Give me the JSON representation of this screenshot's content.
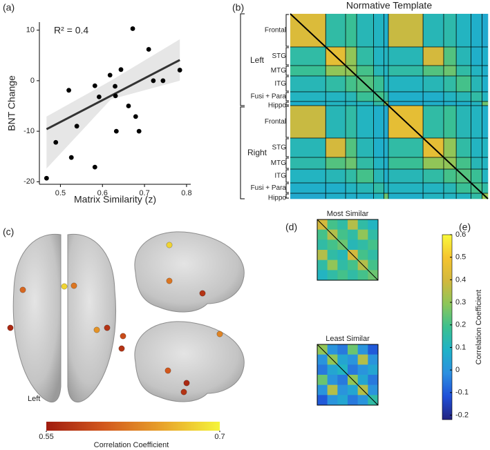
{
  "chart_data": [
    {
      "type": "scatter",
      "label": "(a)",
      "annotation": "R² = 0.4",
      "xlabel": "Matrix Similarity (z)",
      "ylabel": "BNT Change",
      "x": [
        0.467,
        0.489,
        0.52,
        0.526,
        0.539,
        0.582,
        0.592,
        0.582,
        0.618,
        0.63,
        0.631,
        0.633,
        0.644,
        0.662,
        0.672,
        0.679,
        0.687,
        0.71,
        0.721,
        0.744,
        0.784
      ],
      "y": [
        -19.3,
        -12.2,
        -1.9,
        -15.2,
        -9,
        -1,
        -3.2,
        -17.1,
        1.1,
        -1.1,
        -3,
        -10,
        2.2,
        -5,
        10.3,
        -7.1,
        -10,
        6.2,
        0,
        0,
        2.1
      ],
      "color": "#000000",
      "fit": {
        "x": [
          0.467,
          0.784
        ],
        "y": [
          -9.6,
          4.1
        ],
        "color": "#333333"
      },
      "band": {
        "x": [
          0.467,
          0.62,
          0.784
        ],
        "lower": [
          -17.4,
          -3.7,
          0
        ],
        "upper": [
          -7.1,
          0,
          8.2
        ],
        "color": "#e6e6e6"
      },
      "xlim": [
        0.45,
        0.81
      ],
      "ylim": [
        -20.5,
        11.6
      ],
      "xticks": [
        0.5,
        0.6,
        0.7,
        0.8
      ],
      "yticks": [
        -20,
        -10,
        0,
        10
      ]
    },
    {
      "type": "heatmap",
      "label": "(b)",
      "title": "Normative Template",
      "groups": [
        "Left",
        "Right"
      ],
      "categories": [
        "Frontal",
        "STG",
        "MTG",
        "ITG",
        "Fusi + Para",
        "Hippo",
        "Frontal",
        "STG",
        "MTG",
        "ITG",
        "Fusi + Para",
        "Hippo"
      ],
      "values": [
        [
          0.42,
          0.15,
          0.18,
          0.12,
          0.1,
          0.08,
          0.38,
          0.12,
          0.14,
          0.1,
          0.08,
          0.06
        ],
        [
          0.15,
          0.45,
          0.3,
          0.15,
          0.1,
          0.1,
          0.12,
          0.4,
          0.22,
          0.12,
          0.08,
          0.08
        ],
        [
          0.18,
          0.3,
          0.3,
          0.2,
          0.12,
          0.1,
          0.15,
          0.22,
          0.25,
          0.15,
          0.1,
          0.08
        ],
        [
          0.12,
          0.15,
          0.2,
          0.22,
          0.18,
          0.1,
          0.1,
          0.12,
          0.15,
          0.2,
          0.12,
          0.08
        ],
        [
          0.1,
          0.1,
          0.12,
          0.18,
          0.2,
          0.15,
          0.08,
          0.08,
          0.1,
          0.12,
          0.15,
          0.1
        ],
        [
          0.08,
          0.1,
          0.1,
          0.1,
          0.15,
          0.3,
          0.06,
          0.08,
          0.08,
          0.08,
          0.1,
          0.25
        ],
        [
          0.38,
          0.12,
          0.15,
          0.1,
          0.08,
          0.06,
          0.45,
          0.15,
          0.18,
          0.12,
          0.1,
          0.08
        ],
        [
          0.12,
          0.4,
          0.22,
          0.12,
          0.08,
          0.08,
          0.15,
          0.45,
          0.3,
          0.15,
          0.1,
          0.1
        ],
        [
          0.14,
          0.22,
          0.25,
          0.15,
          0.1,
          0.08,
          0.18,
          0.3,
          0.3,
          0.2,
          0.12,
          0.1
        ],
        [
          0.1,
          0.12,
          0.15,
          0.2,
          0.12,
          0.08,
          0.12,
          0.15,
          0.2,
          0.22,
          0.18,
          0.1
        ],
        [
          0.08,
          0.08,
          0.1,
          0.12,
          0.15,
          0.1,
          0.1,
          0.1,
          0.12,
          0.18,
          0.2,
          0.15
        ],
        [
          0.06,
          0.08,
          0.08,
          0.08,
          0.1,
          0.25,
          0.08,
          0.1,
          0.1,
          0.1,
          0.15,
          0.3
        ]
      ]
    },
    {
      "type": "heatmap",
      "label": "(d)",
      "title": "Most Similar",
      "values": [
        [
          0.4,
          0.2,
          0.15,
          0.35,
          0.15,
          0.1
        ],
        [
          0.2,
          0.35,
          0.2,
          0.15,
          0.3,
          0.15
        ],
        [
          0.15,
          0.2,
          0.25,
          0.12,
          0.15,
          0.2
        ],
        [
          0.35,
          0.15,
          0.12,
          0.4,
          0.2,
          0.15
        ],
        [
          0.15,
          0.3,
          0.15,
          0.2,
          0.35,
          0.2
        ],
        [
          0.1,
          0.15,
          0.2,
          0.15,
          0.2,
          0.25
        ]
      ]
    },
    {
      "type": "heatmap",
      "title": "Least Similar",
      "values": [
        [
          0.3,
          0,
          -0.05,
          0.25,
          0,
          -0.1
        ],
        [
          0,
          0.3,
          0.05,
          0,
          0.35,
          0
        ],
        [
          -0.05,
          0.05,
          0.1,
          -0.05,
          0,
          0.05
        ],
        [
          0.25,
          0,
          -0.05,
          0.3,
          0.05,
          -0.05
        ],
        [
          0,
          0.35,
          0,
          0.05,
          0.35,
          0
        ],
        [
          -0.1,
          0,
          0.05,
          -0.05,
          0,
          0.15
        ]
      ]
    },
    {
      "type": "colorbar",
      "label": "(e)",
      "ylabel": "Correlation Coefficient",
      "ylim": [
        -0.22,
        0.6
      ],
      "yticks": [
        -0.2,
        -0.1,
        0,
        0.1,
        0.2,
        0.3,
        0.4,
        0.5,
        0.6
      ],
      "colors": [
        "#232380",
        "#1f4fd8",
        "#2c8fe0",
        "#1fb2c8",
        "#3cc08f",
        "#8cc65a",
        "#d2b83e",
        "#f5c42e",
        "#f9f93c"
      ]
    },
    {
      "type": "brain-dots",
      "label": "(c)",
      "annotation": "Left",
      "xlabel": "Correlation Coefficient",
      "values": [
        0.61,
        0.68,
        0.62,
        0.56,
        0.57,
        0.64,
        0.59,
        0.57,
        0.68,
        0.62,
        0.57,
        0.63,
        0.6,
        0.56,
        0.57
      ],
      "xlim": [
        0.55,
        0.7
      ],
      "xticks": [
        0.55,
        0.7
      ],
      "colors": [
        "#a01c0f",
        "#d2581d",
        "#e8a22a",
        "#f5f53b"
      ]
    }
  ]
}
